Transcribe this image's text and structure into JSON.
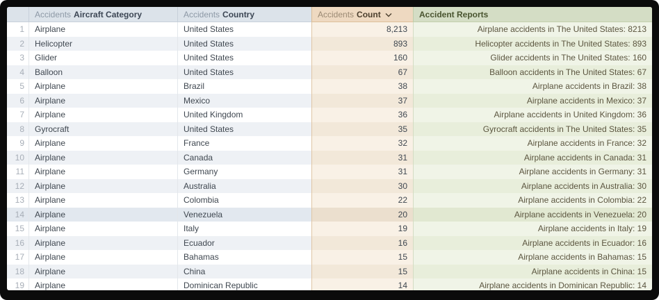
{
  "table": {
    "columns": [
      {
        "prefix": "",
        "label": ""
      },
      {
        "prefix": "Accidents",
        "label": "Aircraft Category"
      },
      {
        "prefix": "Accidents",
        "label": "Country"
      },
      {
        "prefix": "Accidents",
        "label": "Count",
        "sort": "desc"
      },
      {
        "prefix": "",
        "label": "Accident Reports"
      }
    ],
    "selected_row": 14,
    "rows": [
      {
        "num": 1,
        "category": "Airplane",
        "country": "United States",
        "count": "8,213",
        "report": "Airplane accidents in The United States: 8213"
      },
      {
        "num": 2,
        "category": "Helicopter",
        "country": "United States",
        "count": "893",
        "report": "Helicopter accidents in The United States: 893"
      },
      {
        "num": 3,
        "category": "Glider",
        "country": "United States",
        "count": "160",
        "report": "Glider accidents in The United States: 160"
      },
      {
        "num": 4,
        "category": "Balloon",
        "country": "United States",
        "count": "67",
        "report": "Balloon accidents in The United States: 67"
      },
      {
        "num": 5,
        "category": "Airplane",
        "country": "Brazil",
        "count": "38",
        "report": "Airplane accidents in Brazil: 38"
      },
      {
        "num": 6,
        "category": "Airplane",
        "country": "Mexico",
        "count": "37",
        "report": "Airplane accidents in Mexico: 37"
      },
      {
        "num": 7,
        "category": "Airplane",
        "country": "United Kingdom",
        "count": "36",
        "report": "Airplane accidents in United Kingdom: 36"
      },
      {
        "num": 8,
        "category": "Gyrocraft",
        "country": "United States",
        "count": "35",
        "report": "Gyrocraft accidents in The United States: 35"
      },
      {
        "num": 9,
        "category": "Airplane",
        "country": "France",
        "count": "32",
        "report": "Airplane accidents in France: 32"
      },
      {
        "num": 10,
        "category": "Airplane",
        "country": "Canada",
        "count": "31",
        "report": "Airplane accidents in Canada: 31"
      },
      {
        "num": 11,
        "category": "Airplane",
        "country": "Germany",
        "count": "31",
        "report": "Airplane accidents in Germany: 31"
      },
      {
        "num": 12,
        "category": "Airplane",
        "country": "Australia",
        "count": "30",
        "report": "Airplane accidents in Australia: 30"
      },
      {
        "num": 13,
        "category": "Airplane",
        "country": "Colombia",
        "count": "22",
        "report": "Airplane accidents in Colombia: 22"
      },
      {
        "num": 14,
        "category": "Airplane",
        "country": "Venezuela",
        "count": "20",
        "report": "Airplane accidents in Venezuela: 20"
      },
      {
        "num": 15,
        "category": "Airplane",
        "country": "Italy",
        "count": "19",
        "report": "Airplane accidents in Italy: 19"
      },
      {
        "num": 16,
        "category": "Airplane",
        "country": "Ecuador",
        "count": "16",
        "report": "Airplane accidents in Ecuador: 16"
      },
      {
        "num": 17,
        "category": "Airplane",
        "country": "Bahamas",
        "count": "15",
        "report": "Airplane accidents in Bahamas: 15"
      },
      {
        "num": 18,
        "category": "Airplane",
        "country": "China",
        "count": "15",
        "report": "Airplane accidents in China: 15"
      },
      {
        "num": 19,
        "category": "Airplane",
        "country": "Dominican Republic",
        "count": "14",
        "report": "Airplane accidents in Dominican Republic: 14"
      }
    ]
  },
  "colors": {
    "header_blue": "#dce3ea",
    "header_orange": "#eed9c1",
    "header_green": "#d4ddc5",
    "row_stripe": "#eef1f5",
    "count_column": "#f9f1e6",
    "report_column": "#f0f4e7",
    "frame": "#0b0b0b"
  }
}
